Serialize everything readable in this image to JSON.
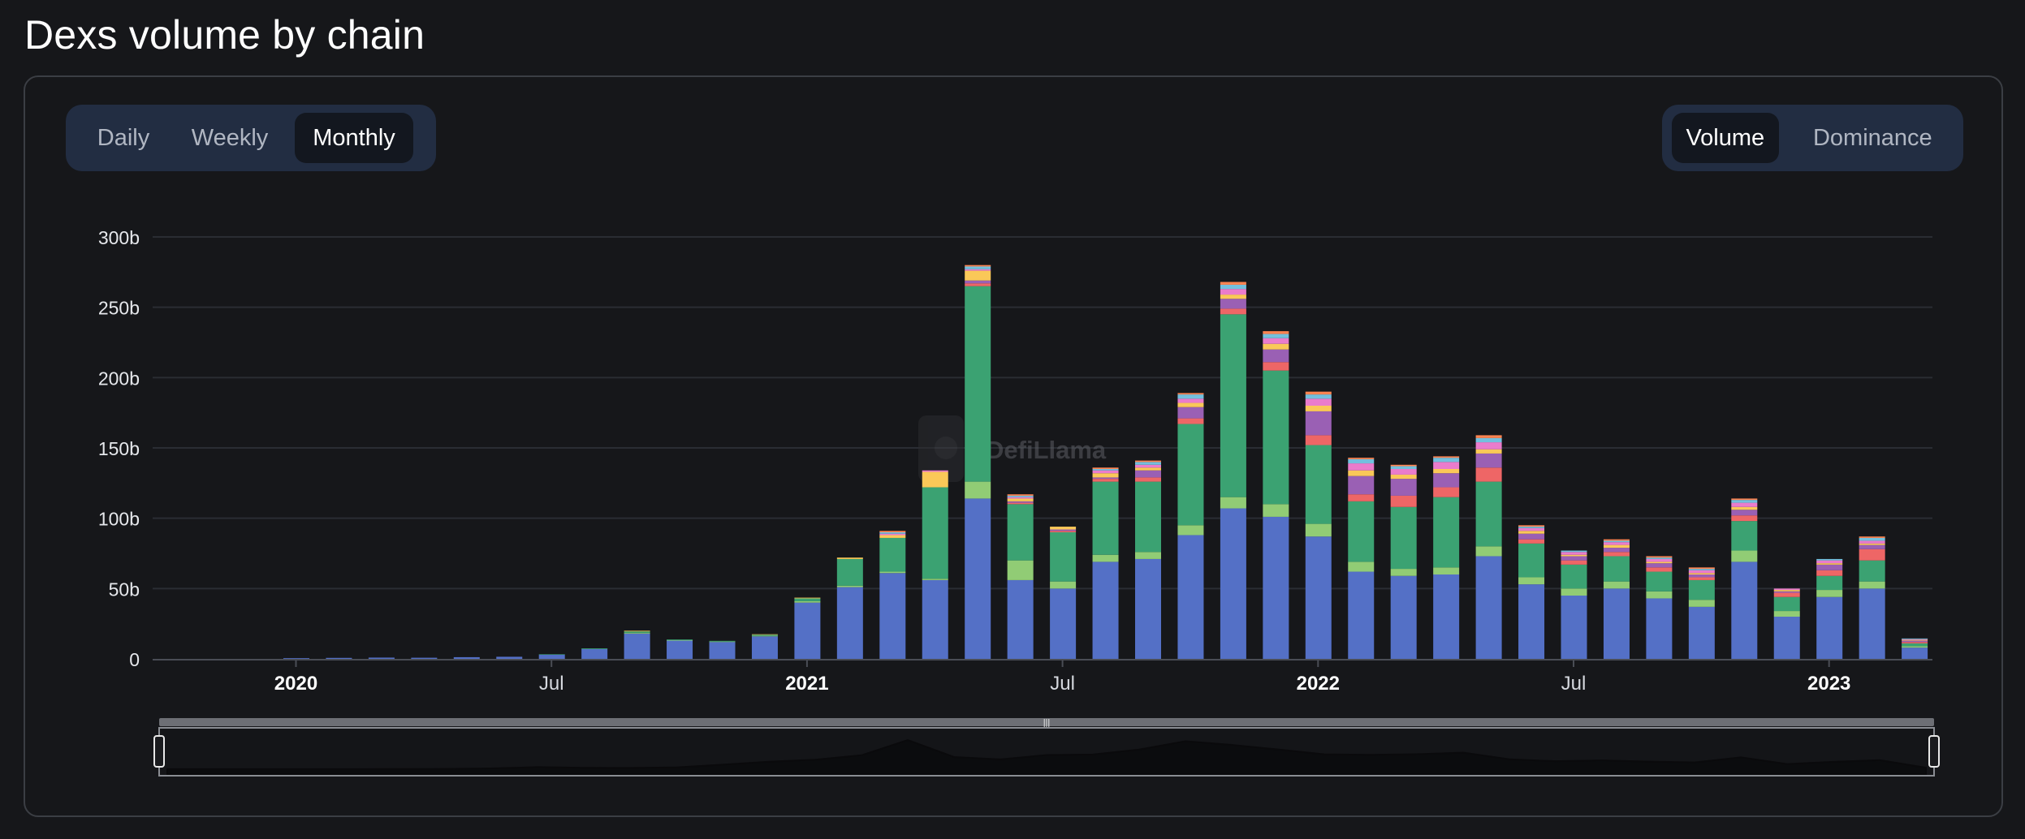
{
  "page": {
    "title": "Dexs volume by chain"
  },
  "period_toggle": {
    "options": [
      {
        "label": "Daily",
        "active": false
      },
      {
        "label": "Weekly",
        "active": false
      },
      {
        "label": "Monthly",
        "active": true
      }
    ]
  },
  "metric_toggle": {
    "options": [
      {
        "label": "Volume",
        "active": true
      },
      {
        "label": "Dominance",
        "active": false
      }
    ]
  },
  "watermark": {
    "text": "DefiLlama"
  },
  "colors": {
    "background": "#16171a",
    "gridline": "#2a2d33",
    "axis": "#4a4d55",
    "segment_bg": "#222d42",
    "segment_active": "#13171f",
    "stack_colors": [
      "#5470c6",
      "#91cc75",
      "#3ba272",
      "#ee6666",
      "#9a60b4",
      "#fac858",
      "#ea7ccc",
      "#73c0de",
      "#fc8452"
    ]
  },
  "chart_data": {
    "type": "bar",
    "stacked": true,
    "interval": "monthly",
    "x_tick_labels": [
      "2020",
      "Jul",
      "2021",
      "Jul",
      "2022",
      "Jul",
      "2023"
    ],
    "y_tick_labels": [
      "0",
      "50b",
      "100b",
      "150b",
      "200b",
      "250b",
      "300b"
    ],
    "ylim": [
      0,
      300
    ],
    "y_unit": "b",
    "grid": true,
    "legend": "none",
    "categories": [
      "2020-01",
      "2020-02",
      "2020-03",
      "2020-04",
      "2020-05",
      "2020-06",
      "2020-07",
      "2020-08",
      "2020-09",
      "2020-10",
      "2020-11",
      "2020-12",
      "2021-01",
      "2021-02",
      "2021-03",
      "2021-04",
      "2021-05",
      "2021-06",
      "2021-07",
      "2021-08",
      "2021-09",
      "2021-10",
      "2021-11",
      "2021-12",
      "2022-01",
      "2022-02",
      "2022-03",
      "2022-04",
      "2022-05",
      "2022-06",
      "2022-07",
      "2022-08",
      "2022-09",
      "2022-10",
      "2022-11",
      "2022-12",
      "2023-01",
      "2023-02",
      "2023-03"
    ],
    "series": [
      {
        "values": [
          0.5,
          0.7,
          0.9,
          0.8,
          1.2,
          1.5,
          3,
          7,
          18,
          13,
          12,
          16,
          40,
          51,
          61,
          56,
          114,
          56,
          50,
          69,
          71,
          88,
          107,
          101,
          87,
          62,
          59,
          60,
          73,
          53,
          45,
          50,
          43,
          37,
          69,
          30,
          44,
          50,
          8
        ]
      },
      {
        "values": [
          0,
          0,
          0,
          0,
          0,
          0,
          0,
          0,
          0.5,
          0.3,
          0.3,
          0.4,
          1,
          1,
          1,
          1,
          12,
          14,
          5,
          5,
          5,
          7,
          8,
          9,
          9,
          7,
          5,
          5,
          7,
          5,
          5,
          5,
          5,
          5,
          8,
          4,
          5,
          5,
          1
        ]
      },
      {
        "values": [
          0,
          0,
          0,
          0,
          0,
          0,
          0.3,
          0.5,
          1,
          0.5,
          0.5,
          0.8,
          2,
          19,
          24,
          65,
          139,
          40,
          35,
          52,
          50,
          72,
          130,
          95,
          56,
          43,
          44,
          50,
          46,
          24,
          17,
          18,
          14,
          14,
          21,
          10,
          10,
          15,
          2
        ]
      },
      {
        "values": [
          0,
          0,
          0,
          0,
          0,
          0,
          0,
          0,
          0,
          0,
          0,
          0,
          0,
          0,
          0,
          0,
          2,
          1,
          1,
          2,
          3,
          4,
          4,
          6,
          7,
          5,
          8,
          7,
          10,
          3,
          3,
          3,
          3,
          2,
          4,
          3,
          4,
          8,
          1
        ]
      },
      {
        "values": [
          0,
          0,
          0,
          0,
          0,
          0,
          0,
          0,
          0,
          0,
          0,
          0,
          0,
          0,
          0,
          0,
          2,
          1,
          1,
          1,
          5,
          8,
          7,
          9,
          17,
          13,
          12,
          10,
          10,
          4,
          3,
          3,
          3,
          2,
          4,
          1,
          4,
          3,
          1
        ]
      },
      {
        "values": [
          0,
          0,
          0,
          0,
          0,
          0,
          0,
          0,
          0.5,
          0,
          0,
          0.3,
          0.5,
          1,
          2,
          11,
          7,
          2,
          2,
          3,
          2,
          3,
          3,
          4,
          4,
          4,
          3,
          3,
          3,
          2,
          1,
          2,
          1,
          1,
          2,
          1,
          1,
          1,
          0.5
        ]
      },
      {
        "values": [
          0,
          0,
          0,
          0,
          0,
          0,
          0,
          0,
          0,
          0,
          0,
          0,
          0,
          0,
          1,
          1,
          1,
          1,
          0,
          2,
          2,
          3,
          4,
          4,
          5,
          5,
          4,
          5,
          5,
          2,
          2,
          2,
          2,
          2,
          3,
          1,
          2,
          2,
          0.5
        ]
      },
      {
        "values": [
          0,
          0,
          0,
          0,
          0,
          0,
          0,
          0,
          0,
          0,
          0,
          0,
          0,
          0,
          1,
          0,
          2,
          1,
          0,
          1,
          2,
          3,
          3,
          3,
          3,
          3,
          2,
          3,
          3,
          1,
          1,
          1,
          1,
          1,
          2,
          0,
          1,
          2,
          0.5
        ]
      },
      {
        "values": [
          0,
          0,
          0,
          0,
          0,
          0,
          0,
          0,
          0,
          0,
          0,
          0,
          0,
          0,
          1,
          0,
          1,
          1,
          0,
          1,
          1,
          1,
          2,
          2,
          2,
          1,
          1,
          1,
          2,
          1,
          0,
          1,
          1,
          1,
          1,
          0,
          0,
          1,
          0
        ]
      }
    ],
    "overview": {
      "type": "area",
      "description_values_ref": "totals"
    }
  }
}
